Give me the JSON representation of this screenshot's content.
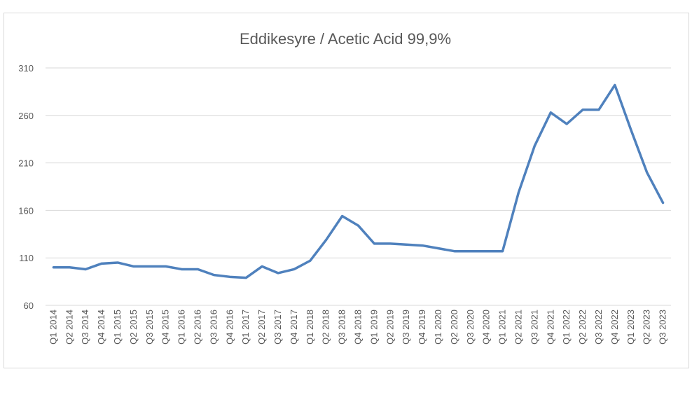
{
  "chart_data": {
    "type": "line",
    "title": "Eddikesyre / Acetic Acid 99,9%",
    "categories": [
      "Q1 2014",
      "Q2 2014",
      "Q3 2014",
      "Q4 2014",
      "Q1 2015",
      "Q2 2015",
      "Q3 2015",
      "Q4 2015",
      "Q1 2016",
      "Q2 2016",
      "Q3 2016",
      "Q4 2016",
      "Q1 2017",
      "Q2 2017",
      "Q3 2017",
      "Q4 2017",
      "Q1 2018",
      "Q2 2018",
      "Q3 2018",
      "Q4 2018",
      "Q1 2019",
      "Q2 2019",
      "Q3 2019",
      "Q4 2019",
      "Q1 2020",
      "Q2 2020",
      "Q3 2020",
      "Q4 2020",
      "Q1 2021",
      "Q2 2021",
      "Q3 2021",
      "Q4 2021",
      "Q1 2022",
      "Q2 2022",
      "Q3 2022",
      "Q4 2022",
      "Q1 2023",
      "Q2 2023",
      "Q3 2023"
    ],
    "values": [
      100,
      100,
      98,
      104,
      105,
      101,
      101,
      101,
      98,
      98,
      92,
      90,
      89,
      101,
      94,
      98,
      107,
      129,
      154,
      144,
      125,
      125,
      124,
      123,
      120,
      117,
      117,
      117,
      117,
      179,
      228,
      263,
      251,
      266,
      266,
      292,
      245,
      200,
      168
    ],
    "color": "#4f81bd",
    "ylim": [
      60,
      310
    ],
    "yticks": [
      60,
      110,
      160,
      210,
      260,
      310
    ],
    "grid": true
  }
}
